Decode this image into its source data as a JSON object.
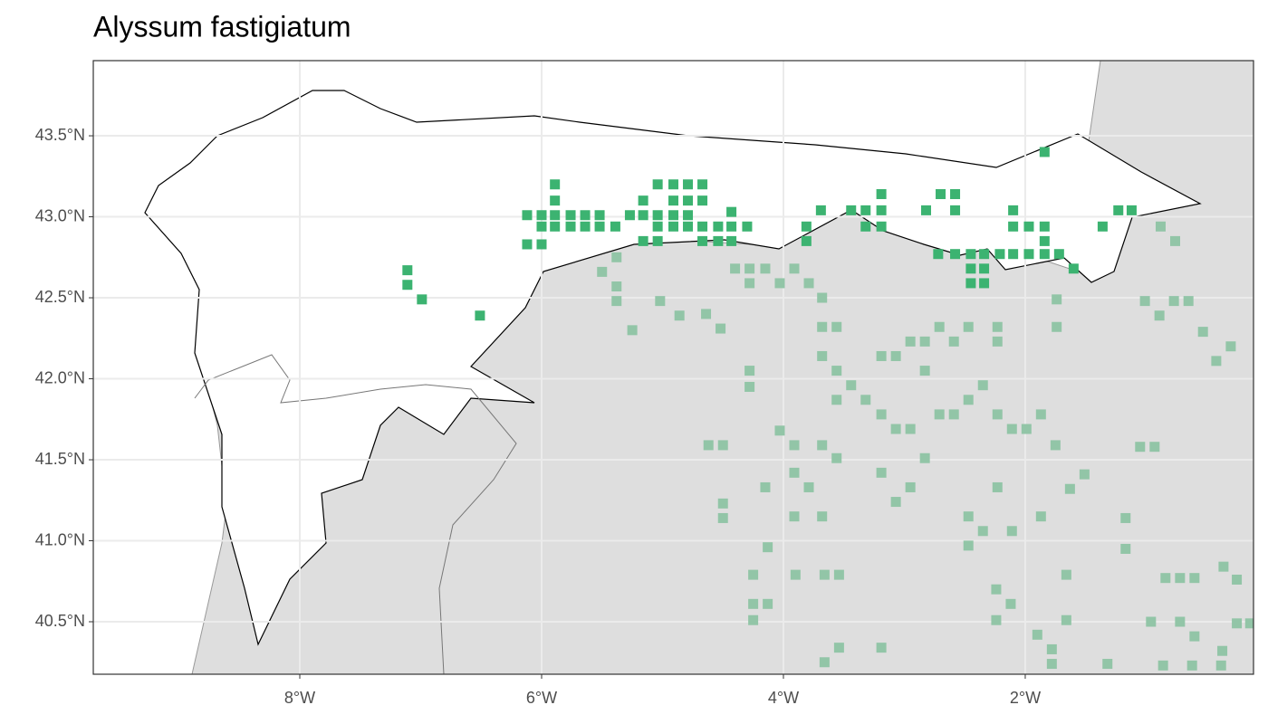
{
  "chart_data": {
    "type": "scatter",
    "title": "Alyssum fastigiatum",
    "xlim": [
      -9.708,
      -0.112
    ],
    "ylim": [
      40.176,
      43.964
    ],
    "xticks": [
      {
        "value": -8,
        "label": "8°W"
      },
      {
        "value": -6,
        "label": "6°W"
      },
      {
        "value": -4,
        "label": "4°W"
      },
      {
        "value": -2,
        "label": "2°W"
      }
    ],
    "yticks": [
      {
        "value": 40.5,
        "label": "40.5°N"
      },
      {
        "value": 41.0,
        "label": "41.0°N"
      },
      {
        "value": 41.5,
        "label": "41.5°N"
      },
      {
        "value": 42.0,
        "label": "42.0°N"
      },
      {
        "value": 42.5,
        "label": "42.5°N"
      },
      {
        "value": 43.0,
        "label": "43.0°N"
      },
      {
        "value": 43.5,
        "label": "43.5°N"
      }
    ],
    "grid": true,
    "series": [
      {
        "color": "#92c5a7",
        "x": [
          -5.5,
          -5.38,
          -5.38,
          -5.38,
          -5.25,
          -5.02,
          -4.86,
          -4.64,
          -4.52,
          -4.4,
          -4.28,
          -4.28,
          -4.15,
          -4.03,
          -3.91,
          -3.79,
          -3.68,
          -3.68,
          -3.56,
          -3.68,
          -3.56,
          -3.44,
          -3.32,
          -3.56,
          -3.19,
          -3.07,
          -2.95,
          -2.83,
          -2.83,
          -2.71,
          -2.59,
          -2.47,
          -2.23,
          -2.23,
          -4.28,
          -4.28,
          -4.03,
          -3.91,
          -3.68,
          -3.56,
          -3.91,
          -3.79,
          -4.15,
          -4.62,
          -4.5,
          -4.5,
          -4.5,
          -3.91,
          -3.68,
          -3.19,
          -3.07,
          -2.95,
          -2.83,
          -3.19,
          -3.07,
          -2.95,
          -2.71,
          -2.59,
          -2.47,
          -2.35,
          -2.23,
          -2.11,
          -1.99,
          -1.87,
          -1.75,
          -2.23,
          -2.47,
          -2.35,
          -2.11,
          -2.47,
          -1.87,
          -1.63,
          -1.51,
          -1.17,
          -1.17,
          -1.05,
          -0.93,
          -1.01,
          -0.89,
          -0.77,
          -0.65,
          -0.53,
          -0.3,
          -0.42,
          -1.74,
          -1.74,
          -0.88,
          -0.76,
          -4.25,
          -4.13,
          -4.25,
          -4.13,
          -4.25,
          -3.9,
          -3.66,
          -3.54,
          -3.54,
          -3.19,
          -3.66,
          -2.24,
          -2.12,
          -2.24,
          -1.66,
          -1.9,
          -1.78,
          -1.66,
          -1.78,
          -1.32,
          -0.96,
          -0.84,
          -0.72,
          -0.6,
          -0.72,
          -0.6,
          -0.36,
          -0.25,
          -0.25,
          -0.37,
          -0.14,
          -0.86,
          -0.62,
          -0.38
        ],
        "values": [
          42.66,
          42.75,
          42.57,
          42.48,
          42.3,
          42.48,
          42.39,
          42.4,
          42.31,
          42.68,
          42.68,
          42.59,
          42.68,
          42.59,
          42.68,
          42.59,
          42.5,
          42.32,
          42.32,
          42.14,
          42.05,
          41.96,
          41.87,
          41.87,
          42.14,
          42.14,
          42.23,
          42.23,
          42.05,
          42.32,
          42.23,
          42.32,
          42.32,
          42.23,
          42.05,
          41.95,
          41.68,
          41.59,
          41.59,
          41.51,
          41.42,
          41.33,
          41.33,
          41.59,
          41.59,
          41.23,
          41.14,
          41.15,
          41.15,
          41.78,
          41.69,
          41.69,
          41.51,
          41.42,
          41.24,
          41.33,
          41.78,
          41.78,
          41.87,
          41.96,
          41.78,
          41.69,
          41.69,
          41.78,
          41.59,
          41.33,
          41.15,
          41.06,
          41.06,
          40.97,
          41.15,
          41.32,
          41.41,
          41.14,
          40.95,
          41.58,
          41.58,
          42.48,
          42.39,
          42.48,
          42.48,
          42.29,
          42.2,
          42.11,
          42.49,
          42.32,
          42.94,
          42.85,
          40.79,
          40.96,
          40.61,
          40.61,
          40.51,
          40.79,
          40.79,
          40.79,
          40.34,
          40.34,
          40.25,
          40.7,
          40.61,
          40.51,
          40.79,
          40.42,
          40.33,
          40.51,
          40.24,
          40.24,
          40.5,
          40.77,
          40.77,
          40.77,
          40.5,
          40.41,
          40.84,
          40.76,
          40.49,
          40.32,
          40.49,
          40.23,
          40.23,
          40.23
        ]
      },
      {
        "color": "#3cb371",
        "x": [
          -1.84,
          -5.89,
          -5.04,
          -4.91,
          -4.79,
          -4.67,
          -3.19,
          -2.7,
          -2.58,
          -5.89,
          -5.16,
          -4.91,
          -4.79,
          -4.67,
          -2.82,
          -2.58,
          -2.1,
          -1.23,
          -1.12,
          -3.69,
          -3.44,
          -3.32,
          -3.19,
          -4.43,
          -6.12,
          -6.0,
          -5.89,
          -5.76,
          -5.64,
          -5.52,
          -5.27,
          -5.16,
          -5.04,
          -4.91,
          -4.79,
          -6.0,
          -5.89,
          -5.76,
          -5.64,
          -5.52,
          -5.39,
          -5.04,
          -4.91,
          -4.79,
          -4.67,
          -4.54,
          -4.43,
          -4.3,
          -3.81,
          -3.32,
          -3.19,
          -2.1,
          -1.97,
          -1.84,
          -1.36,
          -5.16,
          -5.04,
          -4.67,
          -4.54,
          -4.43,
          -3.81,
          -1.84,
          -6.12,
          -6.0,
          -2.72,
          -2.58,
          -2.45,
          -2.34,
          -2.21,
          -2.1,
          -1.97,
          -1.84,
          -1.72,
          -2.45,
          -2.34,
          -1.6,
          -2.45,
          -2.34,
          -7.11,
          -7.11,
          -6.99,
          -6.51
        ],
        "values": [
          43.4,
          43.2,
          43.2,
          43.2,
          43.2,
          43.2,
          43.14,
          43.14,
          43.14,
          43.1,
          43.1,
          43.1,
          43.1,
          43.1,
          43.04,
          43.04,
          43.04,
          43.04,
          43.04,
          43.04,
          43.04,
          43.04,
          43.04,
          43.03,
          43.01,
          43.01,
          43.01,
          43.01,
          43.01,
          43.01,
          43.01,
          43.01,
          43.01,
          43.01,
          43.01,
          42.94,
          42.94,
          42.94,
          42.94,
          42.94,
          42.94,
          42.94,
          42.94,
          42.94,
          42.94,
          42.94,
          42.94,
          42.94,
          42.94,
          42.94,
          42.94,
          42.94,
          42.94,
          42.94,
          42.94,
          42.85,
          42.85,
          42.85,
          42.85,
          42.85,
          42.85,
          42.85,
          42.83,
          42.83,
          42.77,
          42.77,
          42.77,
          42.77,
          42.77,
          42.77,
          42.77,
          42.77,
          42.77,
          42.68,
          42.68,
          42.68,
          42.59,
          42.59,
          42.67,
          42.58,
          42.49,
          42.39
        ]
      }
    ]
  }
}
